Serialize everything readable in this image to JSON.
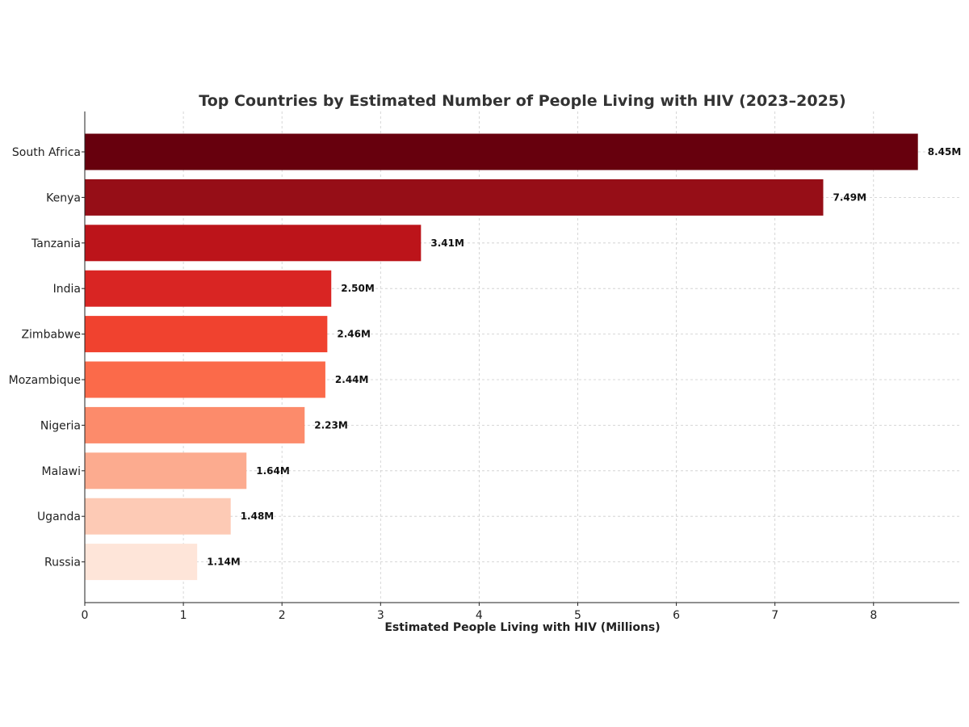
{
  "chart_data": {
    "type": "bar",
    "orientation": "horizontal",
    "title": "Top Countries by Estimated Number of People Living with HIV (2023–2025)",
    "xlabel": "Estimated People Living with HIV (Millions)",
    "ylabel": "",
    "xlim": [
      0,
      8.87
    ],
    "xticks": [
      "0",
      "1",
      "2",
      "3",
      "4",
      "5",
      "6",
      "7",
      "8"
    ],
    "grid": true,
    "categories": [
      "South Africa",
      "Kenya",
      "Tanzania",
      "India",
      "Zimbabwe",
      "Mozambique",
      "Nigeria",
      "Malawi",
      "Uganda",
      "Russia"
    ],
    "values": [
      8.45,
      7.49,
      3.41,
      2.5,
      2.46,
      2.44,
      2.23,
      1.64,
      1.48,
      1.14
    ],
    "value_labels": [
      "8.45M",
      "7.49M",
      "3.41M",
      "2.50M",
      "2.46M",
      "2.44M",
      "2.23M",
      "1.64M",
      "1.48M",
      "1.14M"
    ],
    "colors": [
      "#67000d",
      "#960e17",
      "#bc141a",
      "#d92523",
      "#f0422f",
      "#fb6a4a",
      "#fc8b6b",
      "#fcab8f",
      "#fdcab5",
      "#fee5d9"
    ]
  }
}
